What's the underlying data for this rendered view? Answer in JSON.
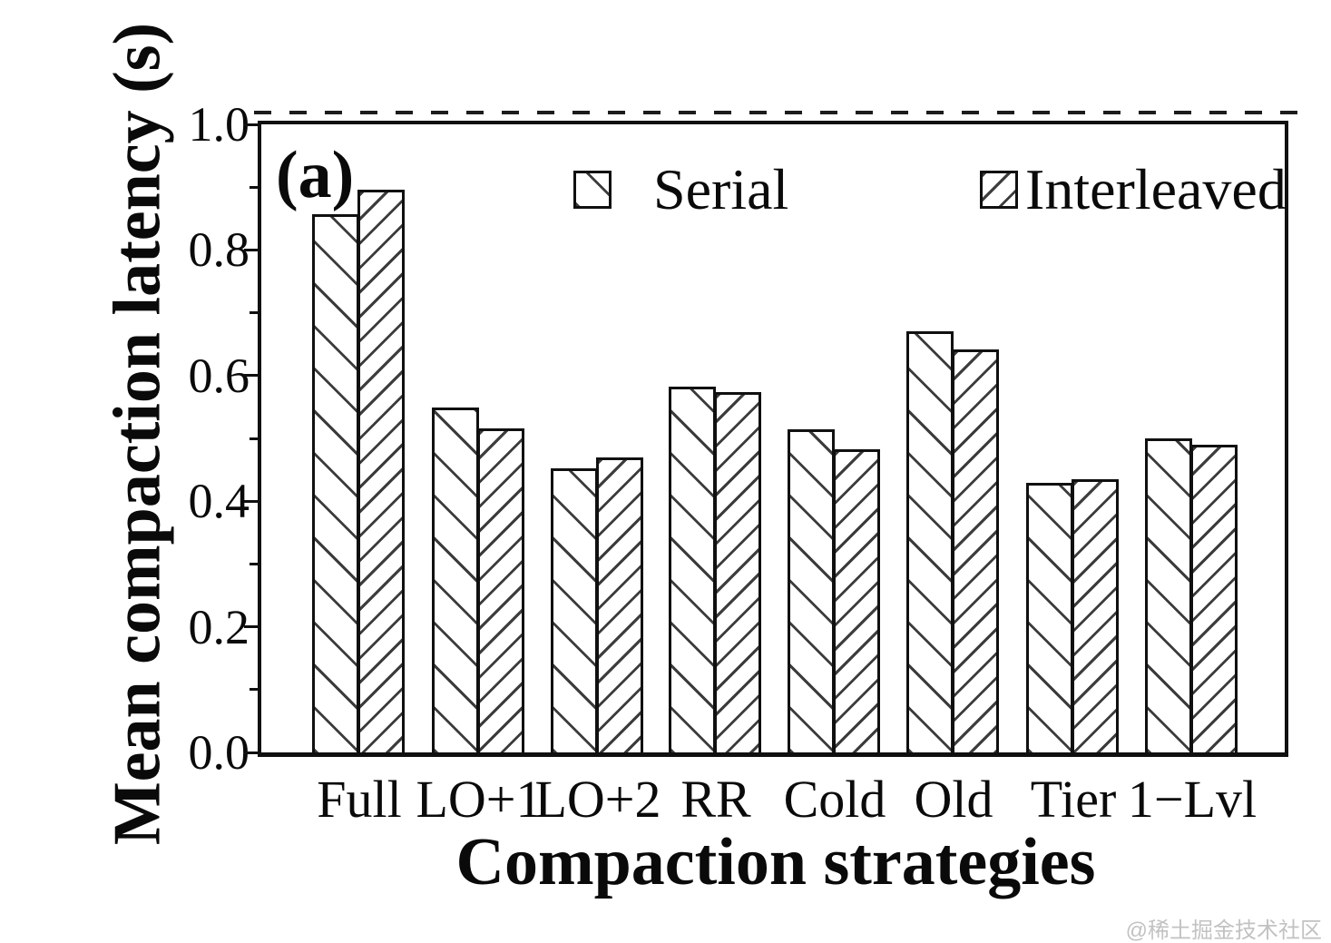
{
  "figure_label": "(a)",
  "watermark": "@稀土掘金技术社区",
  "legend": {
    "serial_icon": "backslash-hatch",
    "interleaved_icon": "forward-slash-hatch"
  },
  "chart_data": {
    "type": "bar",
    "categories": [
      "Full",
      "LO+1",
      "LO+2",
      "RR",
      "Cold",
      "Old",
      "Tier",
      "1−Lvl"
    ],
    "series": [
      {
        "name": "Serial",
        "hatch": "backslash",
        "values": [
          0.857,
          0.549,
          0.452,
          0.583,
          0.515,
          0.671,
          0.429,
          0.5
        ]
      },
      {
        "name": "Interleaved",
        "hatch": "forward-slash",
        "values": [
          0.896,
          0.516,
          0.47,
          0.574,
          0.483,
          0.642,
          0.435,
          0.49
        ]
      }
    ],
    "xlabel": "Compaction strategies",
    "ylabel": "Mean compaction latency (s)",
    "ylim": [
      0.0,
      1.0
    ],
    "yticks": [
      0.0,
      0.2,
      0.4,
      0.6,
      0.8,
      1.0
    ],
    "grid": "off",
    "legend_position": "top-inside"
  }
}
